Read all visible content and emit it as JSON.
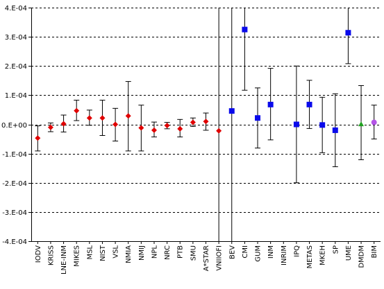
{
  "chart_data": {
    "type": "scatter",
    "title": "",
    "xlabel": "",
    "ylabel": "",
    "ylim": [
      -0.0004,
      0.0004
    ],
    "grid": {
      "horizontal": true,
      "style": "dashed"
    },
    "y_tick_labels": [
      "4.E-04",
      "3.E-04",
      "2.E-04",
      "1.E-04",
      "0.E+00",
      "-1.E-04",
      "-2.E-04",
      "-3.E-04",
      "-4.E-04"
    ],
    "y_tick_values": [
      0.0004,
      0.0003,
      0.0002,
      0.0001,
      0.0,
      -0.0001,
      -0.0002,
      -0.0003,
      -0.0004
    ],
    "categories": [
      "IODV",
      "KRISS",
      "LNE-INM",
      "MIKES",
      "MSL",
      "NIST",
      "VSL",
      "NMIA",
      "NMIJ",
      "NPL",
      "NRC",
      "PTB",
      "SMU",
      "A*STAR",
      "VNIIOFI",
      "BEV",
      "CMI",
      "GUM",
      "INM",
      "INRIM",
      "IPQ",
      "METAS",
      "MKEH",
      "SP",
      "UME",
      "DMDM",
      "BIM"
    ],
    "points": [
      {
        "label": "IODV",
        "y": -4.7e-05,
        "lo": -9.1e-05,
        "hi": -5e-06,
        "color": "#e00000",
        "shape": "diamond"
      },
      {
        "label": "KRISS",
        "y": -1e-05,
        "lo": -2.5e-05,
        "hi": 5e-06,
        "color": "#e00000",
        "shape": "diamond"
      },
      {
        "label": "LNE-INM",
        "y": 2e-06,
        "lo": -2.6e-05,
        "hi": 3.2e-05,
        "color": "#e00000",
        "shape": "diamond"
      },
      {
        "label": "MIKES",
        "y": 4.7e-05,
        "lo": 1.3e-05,
        "hi": 8.3e-05,
        "color": "#e00000",
        "shape": "diamond"
      },
      {
        "label": "MSL",
        "y": 2.2e-05,
        "lo": -3e-06,
        "hi": 4.9e-05,
        "color": "#e00000",
        "shape": "diamond"
      },
      {
        "label": "NIST",
        "y": 2.2e-05,
        "lo": -3.8e-05,
        "hi": 8.3e-05,
        "color": "#e00000",
        "shape": "diamond"
      },
      {
        "label": "VSL",
        "y": 0.0,
        "lo": -5.7e-05,
        "hi": 5.5e-05,
        "color": "#e00000",
        "shape": "diamond"
      },
      {
        "label": "NMIA",
        "y": 2.9e-05,
        "lo": -9.1e-05,
        "hi": 0.000147,
        "color": "#e00000",
        "shape": "diamond"
      },
      {
        "label": "NMIJ",
        "y": -1.2e-05,
        "lo": -9.1e-05,
        "hi": 6.6e-05,
        "color": "#e00000",
        "shape": "diamond"
      },
      {
        "label": "NPL",
        "y": -2e-05,
        "lo": -4.3e-05,
        "hi": 8e-06,
        "color": "#e00000",
        "shape": "diamond"
      },
      {
        "label": "NRC",
        "y": -4e-06,
        "lo": -1.5e-05,
        "hi": 7e-06,
        "color": "#e00000",
        "shape": "diamond"
      },
      {
        "label": "PTB",
        "y": -1.5e-05,
        "lo": -4.3e-05,
        "hi": 1.7e-05,
        "color": "#e00000",
        "shape": "diamond"
      },
      {
        "label": "SMU",
        "y": 7e-06,
        "lo": -7e-06,
        "hi": 2.2e-05,
        "color": "#e00000",
        "shape": "diamond"
      },
      {
        "label": "A*STAR",
        "y": 1e-05,
        "lo": -2e-05,
        "hi": 3.9e-05,
        "color": "#e00000",
        "shape": "diamond"
      },
      {
        "label": "VNIIOFI",
        "y": -2.2e-05,
        "lo": -0.0004,
        "hi": 0.0004,
        "color": "#e00000",
        "shape": "diamond"
      },
      {
        "label": "BEV",
        "y": 4.6e-05,
        "lo": -0.0004,
        "hi": 0.0004,
        "color": "#0a0aeb",
        "shape": "square"
      },
      {
        "label": "CMI",
        "y": 0.000325,
        "lo": 0.000117,
        "hi": 0.0004,
        "color": "#0a0aeb",
        "shape": "square"
      },
      {
        "label": "GUM",
        "y": 2.2e-05,
        "lo": -8.1e-05,
        "hi": 0.000125,
        "color": "#0a0aeb",
        "shape": "square"
      },
      {
        "label": "INM",
        "y": 6.8e-05,
        "lo": -5.3e-05,
        "hi": 0.000192,
        "color": "#0a0aeb",
        "shape": "square"
      },
      {
        "label": "INRIM",
        "y": null,
        "lo": null,
        "hi": null,
        "color": "#0a0aeb",
        "shape": "square"
      },
      {
        "label": "IPQ",
        "y": 0.0,
        "lo": -0.0002,
        "hi": 0.0002,
        "color": "#0a0aeb",
        "shape": "square"
      },
      {
        "label": "METAS",
        "y": 6.8e-05,
        "lo": -1.4e-05,
        "hi": 0.000151,
        "color": "#0a0aeb",
        "shape": "square"
      },
      {
        "label": "MKEH",
        "y": -2e-06,
        "lo": -9.7e-05,
        "hi": 9.3e-05,
        "color": "#0a0aeb",
        "shape": "square"
      },
      {
        "label": "SP",
        "y": -2e-05,
        "lo": -0.000145,
        "hi": 0.000105,
        "color": "#0a0aeb",
        "shape": "square"
      },
      {
        "label": "UME",
        "y": 0.000314,
        "lo": 0.000208,
        "hi": 0.0004,
        "color": "#0a0aeb",
        "shape": "square"
      },
      {
        "label": "DMDM",
        "y": 1e-06,
        "lo": -0.000121,
        "hi": 0.000133,
        "color": "#1fa01f",
        "shape": "triangle"
      },
      {
        "label": "BIM",
        "y": 7e-06,
        "lo": -5e-05,
        "hi": 6.6e-05,
        "color": "#b455e6",
        "shape": "circle"
      }
    ]
  }
}
